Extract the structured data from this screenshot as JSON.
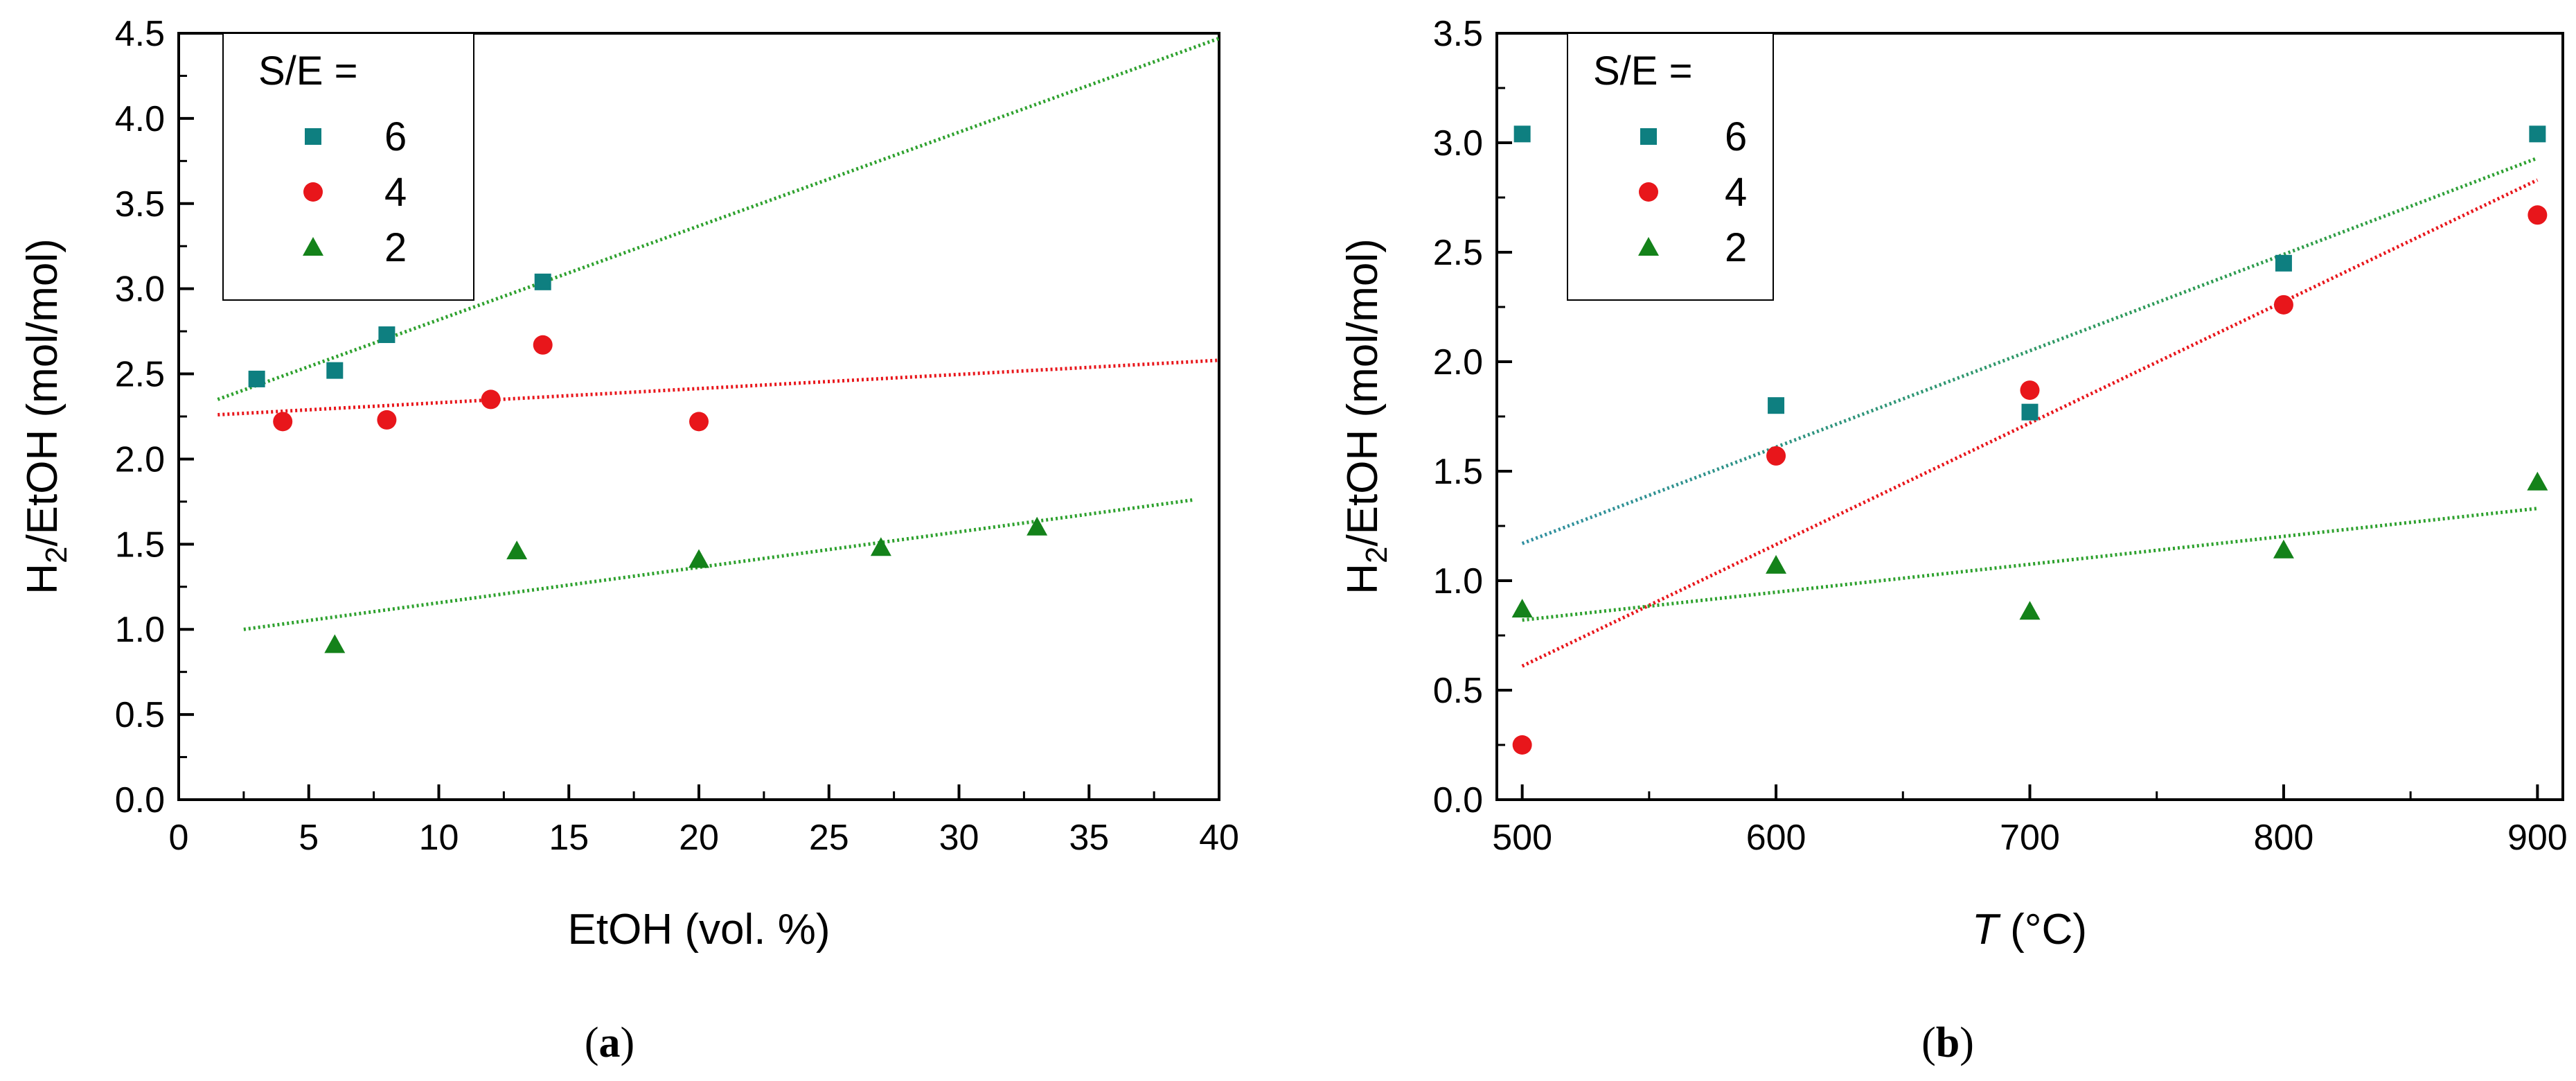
{
  "colors": {
    "s6": "#0e7f80",
    "s4": "#e8161b",
    "s2": "#14821a",
    "trend6_a": "#2ea12e",
    "trend6_b": "#2f8fa0"
  },
  "chart_data": [
    {
      "id": "a",
      "type": "scatter",
      "caption": "a",
      "xlabel": "EtOH (vol. %)",
      "ylabel_main": "H",
      "ylabel_sub": "2",
      "ylabel_rest": "/EtOH (mol/mol)",
      "xlim": [
        0,
        40
      ],
      "ylim": [
        0,
        4.5
      ],
      "xticks": [
        "0",
        "5",
        "10",
        "15",
        "20",
        "25",
        "30",
        "35",
        "40"
      ],
      "yticks": [
        "0.0",
        "0.5",
        "1.0",
        "1.5",
        "2.0",
        "2.5",
        "3.0",
        "3.5",
        "4.0",
        "4.5"
      ],
      "legend": {
        "title": "S/E =",
        "position": "top-left"
      },
      "series": [
        {
          "name": "6",
          "marker": "square",
          "x": [
            3,
            6,
            8,
            14
          ],
          "y": [
            2.47,
            2.52,
            2.73,
            3.04
          ],
          "trend": [
            [
              1.5,
              2.35
            ],
            [
              40,
              4.47
            ]
          ]
        },
        {
          "name": "4",
          "marker": "circle",
          "x": [
            4,
            8,
            12,
            14,
            20
          ],
          "y": [
            2.22,
            2.23,
            2.35,
            2.67,
            2.22
          ],
          "trend": [
            [
              1.5,
              2.26
            ],
            [
              40,
              2.58
            ]
          ]
        },
        {
          "name": "2",
          "marker": "triangle",
          "x": [
            6,
            13,
            20,
            27,
            33
          ],
          "y": [
            0.91,
            1.46,
            1.41,
            1.48,
            1.6
          ],
          "trend": [
            [
              2.5,
              1.0
            ],
            [
              39,
              1.76
            ]
          ]
        }
      ]
    },
    {
      "id": "b",
      "type": "scatter",
      "caption": "b",
      "xlabel_italic": "T",
      "xlabel_rest": " (°C)",
      "ylabel_main": "H",
      "ylabel_sub": "2",
      "ylabel_rest": "/EtOH (mol/mol)",
      "xlim": [
        490,
        910
      ],
      "ylim": [
        0,
        3.5
      ],
      "xticks": [
        "500",
        "600",
        "700",
        "800",
        "900"
      ],
      "yticks": [
        "0.0",
        "0.5",
        "1.0",
        "1.5",
        "2.0",
        "2.5",
        "3.0",
        "3.5"
      ],
      "legend": {
        "title": "S/E =",
        "position": "top-left"
      },
      "series": [
        {
          "name": "6",
          "marker": "square",
          "x": [
            500,
            600,
            700,
            800,
            900
          ],
          "y": [
            3.04,
            1.8,
            1.77,
            2.45,
            3.04
          ],
          "trend": [
            [
              500,
              1.17
            ],
            [
              900,
              2.93
            ]
          ]
        },
        {
          "name": "4",
          "marker": "circle",
          "x": [
            500,
            600,
            700,
            800,
            900
          ],
          "y": [
            0.25,
            1.57,
            1.87,
            2.26,
            2.67
          ],
          "trend": [
            [
              500,
              0.61
            ],
            [
              900,
              2.83
            ]
          ]
        },
        {
          "name": "2",
          "marker": "triangle",
          "x": [
            500,
            600,
            700,
            800,
            900
          ],
          "y": [
            0.87,
            1.07,
            0.86,
            1.14,
            1.45
          ],
          "trend": [
            [
              500,
              0.82
            ],
            [
              900,
              1.33
            ]
          ]
        }
      ]
    }
  ]
}
